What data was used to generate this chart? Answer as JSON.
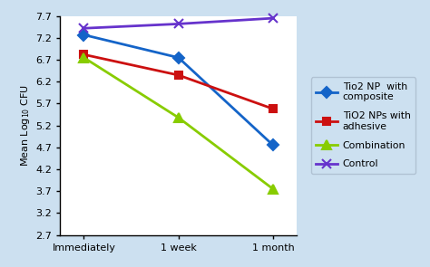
{
  "x_labels": [
    "Immediately",
    "1 week",
    "1 month"
  ],
  "series": [
    {
      "label": "Tio2 NP  with\ncomposite",
      "values": [
        7.27,
        6.75,
        4.75
      ],
      "color": "#1464c8",
      "marker": "D",
      "markersize": 6,
      "linewidth": 2.0,
      "markerfacecolor": "#1464c8"
    },
    {
      "label": "TiO2 NPs with\nadhesive",
      "values": [
        6.82,
        6.35,
        5.58
      ],
      "color": "#cc1010",
      "marker": "s",
      "markersize": 6,
      "linewidth": 2.0,
      "markerfacecolor": "#cc1010"
    },
    {
      "label": "Combination",
      "values": [
        6.75,
        5.38,
        3.75
      ],
      "color": "#88cc00",
      "marker": "^",
      "markersize": 7,
      "linewidth": 2.0,
      "markerfacecolor": "#88cc00"
    },
    {
      "label": "Control",
      "values": [
        7.42,
        7.52,
        7.65
      ],
      "color": "#6633cc",
      "marker": "x",
      "markersize": 7,
      "linewidth": 2.0,
      "markerfacecolor": "#6633cc"
    }
  ],
  "ylabel": "Mean Log$_{10}$ CFU",
  "ylim": [
    2.7,
    7.7
  ],
  "yticks": [
    2.7,
    3.2,
    3.7,
    4.2,
    4.7,
    5.2,
    5.7,
    6.2,
    6.7,
    7.2,
    7.7
  ],
  "background_color": "#cce0f0",
  "plot_bg_color": "#ffffff",
  "legend_bg_color": "#cce0f0",
  "figsize": [
    4.74,
    2.95
  ],
  "dpi": 100
}
